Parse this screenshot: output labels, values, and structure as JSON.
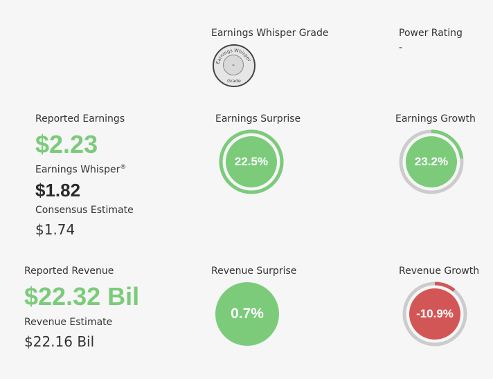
{
  "grade": {
    "title": "Earnings Whisper Grade",
    "ring_text": "Earnings Whisper",
    "ring_bottom": "Grade",
    "value": "-"
  },
  "power": {
    "title": "Power Rating",
    "value": "-"
  },
  "earnings": {
    "reported_label": "Reported Earnings",
    "reported_value": "$2.23",
    "whisper_label": "Earnings Whisper",
    "whisper_reg": "®",
    "whisper_value": "$1.82",
    "consensus_label": "Consensus Estimate",
    "consensus_value": "$1.74"
  },
  "earnings_surprise": {
    "title": "Earnings Surprise",
    "value": "22.5%",
    "fill_fraction": 1.0,
    "color": "#7bcb7b"
  },
  "earnings_growth": {
    "title": "Earnings Growth",
    "value": "23.2%",
    "fill_fraction": 0.232,
    "color": "#7bcb7b"
  },
  "revenue": {
    "reported_label": "Reported Revenue",
    "reported_value": "$22.32 Bil",
    "estimate_label": "Revenue Estimate",
    "estimate_value": "$22.16 Bil"
  },
  "revenue_surprise": {
    "title": "Revenue Surprise",
    "value": "0.7%",
    "fill_fraction": 0.007,
    "color": "#7bcb7b"
  },
  "revenue_growth": {
    "title": "Revenue Growth",
    "value": "-10.9%",
    "fill_fraction": 0.109,
    "color": "#d35656"
  },
  "colors": {
    "positive": "#7bcb7b",
    "negative": "#d35656",
    "track": "#cccccc"
  }
}
